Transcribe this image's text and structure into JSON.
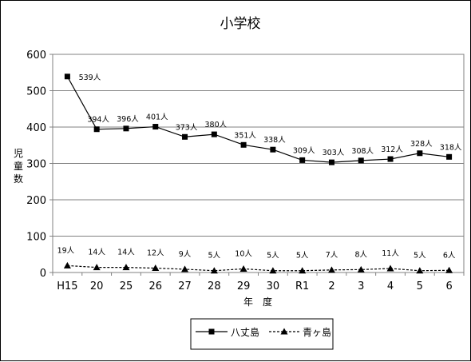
{
  "chart_data": {
    "type": "line",
    "title": "小学校",
    "xlabel": "年　度",
    "ylabel": "児童数",
    "categories": [
      "H15",
      "20",
      "25",
      "26",
      "27",
      "28",
      "29",
      "30",
      "R1",
      "2",
      "3",
      "4",
      "5",
      "6"
    ],
    "ylim": [
      0,
      600
    ],
    "yticks": [
      "0",
      "100",
      "200",
      "300",
      "400",
      "500",
      "600"
    ],
    "grid": true,
    "legend_position": "bottom",
    "series": [
      {
        "name": "八丈島",
        "marker": "square",
        "line": "solid",
        "values": [
          539,
          394,
          396,
          401,
          373,
          380,
          351,
          338,
          309,
          303,
          308,
          312,
          328,
          318
        ],
        "labels": [
          "539人",
          "394人",
          "396人",
          "401人",
          "373人",
          "380人",
          "351人",
          "338人",
          "309人",
          "303人",
          "308人",
          "312人",
          "328人",
          "318人"
        ]
      },
      {
        "name": "青ヶ島",
        "marker": "triangle",
        "line": "dashed",
        "values": [
          19,
          14,
          14,
          12,
          9,
          5,
          10,
          5,
          5,
          7,
          8,
          11,
          5,
          6
        ],
        "labels": [
          "19人",
          "14人",
          "14人",
          "12人",
          "9人",
          "5人",
          "10人",
          "5人",
          "5人",
          "7人",
          "8人",
          "11人",
          "5人",
          "6人"
        ]
      }
    ]
  }
}
